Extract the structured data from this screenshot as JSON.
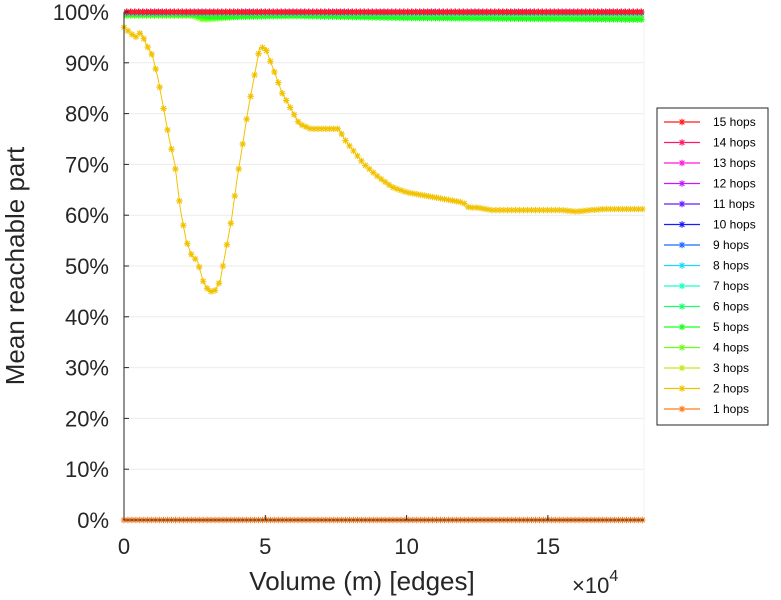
{
  "chart_data": {
    "type": "line",
    "title": "",
    "xlabel": "Volume (m) [edges]",
    "ylabel": "Mean reachable part",
    "x_multiplier": {
      "base": "×10",
      "exponent": "4"
    },
    "xlim": [
      0,
      184000
    ],
    "ylim": [
      0,
      1
    ],
    "x_ticks": [
      {
        "value": 0,
        "label": "0"
      },
      {
        "value": 50000,
        "label": "5"
      },
      {
        "value": 100000,
        "label": "10"
      },
      {
        "value": 150000,
        "label": "15"
      }
    ],
    "y_ticks": [
      {
        "value": 0,
        "label": "0%"
      },
      {
        "value": 0.1,
        "label": "10%"
      },
      {
        "value": 0.2,
        "label": "20%"
      },
      {
        "value": 0.3,
        "label": "30%"
      },
      {
        "value": 0.4,
        "label": "40%"
      },
      {
        "value": 0.5,
        "label": "50%"
      },
      {
        "value": 0.6,
        "label": "60%"
      },
      {
        "value": 0.7,
        "label": "70%"
      },
      {
        "value": 0.8,
        "label": "80%"
      },
      {
        "value": 0.9,
        "label": "90%"
      },
      {
        "value": 1,
        "label": "100%"
      }
    ],
    "grid": "horizontal",
    "legend_position": "right",
    "series": [
      {
        "name": "15 hops",
        "color": "#ff1a1a",
        "x": [
          1000,
          184000
        ],
        "y": [
          1.0,
          1.0
        ]
      },
      {
        "name": "14 hops",
        "color": "#ff1a66",
        "x": [
          1000,
          184000
        ],
        "y": [
          1.0,
          1.0
        ]
      },
      {
        "name": "13 hops",
        "color": "#ff1ad9",
        "x": [
          1000,
          184000
        ],
        "y": [
          1.0,
          1.0
        ]
      },
      {
        "name": "12 hops",
        "color": "#c41aff",
        "x": [
          1000,
          184000
        ],
        "y": [
          1.0,
          1.0
        ]
      },
      {
        "name": "11 hops",
        "color": "#6b1aff",
        "x": [
          1000,
          184000
        ],
        "y": [
          1.0,
          1.0
        ]
      },
      {
        "name": "10 hops",
        "color": "#1a1aff",
        "x": [
          1000,
          60000,
          184000
        ],
        "y": [
          1.0,
          1.0,
          1.0
        ]
      },
      {
        "name": "9 hops",
        "color": "#1a6bff",
        "x": [
          1000,
          184000
        ],
        "y": [
          1.0,
          1.0
        ]
      },
      {
        "name": "8 hops",
        "color": "#1ad9ff",
        "x": [
          1000,
          184000
        ],
        "y": [
          0.999,
          0.999
        ]
      },
      {
        "name": "7 hops",
        "color": "#1affc4",
        "x": [
          1000,
          184000
        ],
        "y": [
          0.998,
          0.998
        ]
      },
      {
        "name": "6 hops",
        "color": "#1aff6b",
        "x": [
          1000,
          30000,
          60000,
          100000,
          184000
        ],
        "y": [
          0.997,
          0.998,
          0.997,
          0.996,
          0.995
        ]
      },
      {
        "name": "5 hops",
        "color": "#1aff1a",
        "x": [
          1000,
          24000,
          30000,
          60000,
          100000,
          184000
        ],
        "y": [
          0.995,
          0.995,
          0.99,
          0.992,
          0.988,
          0.985
        ]
      },
      {
        "name": "4 hops",
        "color": "#6bff1a",
        "x": [
          1000,
          24000,
          28000,
          40000,
          60000,
          100000,
          184000
        ],
        "y": [
          0.993,
          0.993,
          0.985,
          0.99,
          0.993,
          0.99,
          0.985
        ]
      },
      {
        "name": "3 hops",
        "color": "#c8e61a",
        "x": [
          1000,
          184000
        ],
        "y": [
          0.993,
          0.99
        ]
      },
      {
        "name": "2 hops",
        "color": "#f2c200",
        "x": [
          0,
          2000,
          4000,
          6000,
          8000,
          10000,
          12000,
          14000,
          16000,
          18000,
          20000,
          22000,
          24000,
          26000,
          28000,
          30000,
          32000,
          34000,
          36000,
          38000,
          40000,
          42000,
          44000,
          46000,
          48000,
          50000,
          52000,
          54000,
          56000,
          58000,
          60000,
          62000,
          64000,
          66000,
          68000,
          70000,
          72000,
          74000,
          76000,
          78000,
          80000,
          85000,
          90000,
          95000,
          100000,
          105000,
          110000,
          115000,
          120000,
          122000,
          125000,
          130000,
          135000,
          140000,
          145000,
          150000,
          155000,
          160000,
          165000,
          170000,
          175000,
          180000,
          184000
        ],
        "y": [
          0.97,
          0.96,
          0.95,
          0.96,
          0.935,
          0.915,
          0.87,
          0.81,
          0.75,
          0.7,
          0.61,
          0.55,
          0.52,
          0.51,
          0.47,
          0.45,
          0.45,
          0.47,
          0.53,
          0.59,
          0.67,
          0.74,
          0.81,
          0.87,
          0.93,
          0.93,
          0.9,
          0.87,
          0.84,
          0.82,
          0.8,
          0.78,
          0.775,
          0.77,
          0.77,
          0.77,
          0.77,
          0.77,
          0.77,
          0.75,
          0.735,
          0.7,
          0.675,
          0.655,
          0.645,
          0.64,
          0.635,
          0.63,
          0.625,
          0.615,
          0.615,
          0.61,
          0.61,
          0.61,
          0.61,
          0.61,
          0.61,
          0.607,
          0.61,
          0.612,
          0.612,
          0.612,
          0.612
        ]
      },
      {
        "name": "1 hops",
        "color": "#ff7a1a",
        "x": [
          0,
          184000
        ],
        "y": [
          0.0,
          0.0
        ]
      }
    ]
  }
}
